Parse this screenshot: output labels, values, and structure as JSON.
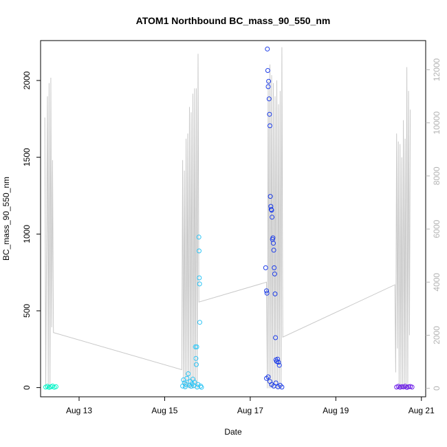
{
  "chart_data": {
    "type": "scatter",
    "title": "ATOM1 Northbound BC_mass_90_550_nm",
    "xlabel": "Date",
    "ylabel": "BC_mass_90_550_nm",
    "x_ticks": [
      {
        "day": 13,
        "label": "Aug 13"
      },
      {
        "day": 15,
        "label": "Aug 15"
      },
      {
        "day": 17,
        "label": "Aug 17"
      },
      {
        "day": 19,
        "label": "Aug 19"
      },
      {
        "day": 21,
        "label": "Aug 21"
      }
    ],
    "x_range": [
      12.1,
      21.1
    ],
    "ylim_left": [
      -60,
      2260
    ],
    "yticks_left": [
      0,
      500,
      1000,
      1500,
      2000
    ],
    "ylim_right": [
      -320,
      13100
    ],
    "yticks_right": [
      0,
      2000,
      4000,
      6000,
      8000,
      10000,
      12000
    ],
    "grid": false,
    "legend": "none",
    "colors": {
      "points_aug12": "#00f5c8",
      "points_aug15": "#2cc4f5",
      "points_aug17": "#1a3ae8",
      "points_aug20": "#6a1ae8",
      "line": "#c8c8c8",
      "right_axis": "#b3b3b3"
    },
    "series": [
      {
        "color_key": "points_aug12",
        "points": [
          [
            12.22,
            3
          ],
          [
            12.26,
            8
          ],
          [
            12.3,
            1
          ],
          [
            12.34,
            5
          ],
          [
            12.38,
            10
          ],
          [
            12.42,
            2
          ],
          [
            12.46,
            6
          ]
        ]
      },
      {
        "color_key": "points_aug15",
        "points": [
          [
            15.42,
            10
          ],
          [
            15.44,
            50
          ],
          [
            15.46,
            30
          ],
          [
            15.48,
            5
          ],
          [
            15.5,
            20
          ],
          [
            15.52,
            60
          ],
          [
            15.55,
            90
          ],
          [
            15.58,
            15
          ],
          [
            15.6,
            40
          ],
          [
            15.62,
            8
          ],
          [
            15.64,
            25
          ],
          [
            15.66,
            55
          ],
          [
            15.68,
            12
          ],
          [
            15.7,
            35
          ],
          [
            15.72,
            265
          ],
          [
            15.73,
            190
          ],
          [
            15.74,
            150
          ],
          [
            15.75,
            265
          ],
          [
            15.76,
            3
          ],
          [
            15.78,
            20
          ],
          [
            15.8,
            980
          ],
          [
            15.805,
            890
          ],
          [
            15.81,
            715
          ],
          [
            15.815,
            675
          ],
          [
            15.82,
            425
          ],
          [
            15.84,
            10
          ],
          [
            15.86,
            2
          ]
        ]
      },
      {
        "color_key": "points_aug17",
        "points": [
          [
            17.36,
            780
          ],
          [
            17.38,
            630
          ],
          [
            17.39,
            615
          ],
          [
            17.4,
            2205
          ],
          [
            17.41,
            2065
          ],
          [
            17.42,
            1960
          ],
          [
            17.43,
            1995
          ],
          [
            17.44,
            1880
          ],
          [
            17.45,
            1780
          ],
          [
            17.46,
            1705
          ],
          [
            17.47,
            1245
          ],
          [
            17.48,
            1180
          ],
          [
            17.49,
            1160
          ],
          [
            17.5,
            1155
          ],
          [
            17.51,
            1110
          ],
          [
            17.52,
            965
          ],
          [
            17.53,
            975
          ],
          [
            17.54,
            940
          ],
          [
            17.55,
            895
          ],
          [
            17.56,
            780
          ],
          [
            17.57,
            740
          ],
          [
            17.58,
            610
          ],
          [
            17.59,
            325
          ],
          [
            17.6,
            180
          ],
          [
            17.62,
            170
          ],
          [
            17.64,
            185
          ],
          [
            17.66,
            165
          ],
          [
            17.68,
            145
          ],
          [
            17.38,
            60
          ],
          [
            17.42,
            70
          ],
          [
            17.46,
            40
          ],
          [
            17.5,
            20
          ],
          [
            17.55,
            10
          ],
          [
            17.6,
            30
          ],
          [
            17.65,
            5
          ],
          [
            17.7,
            15
          ],
          [
            17.74,
            3
          ]
        ]
      },
      {
        "color_key": "points_aug20",
        "points": [
          [
            20.42,
            3
          ],
          [
            20.46,
            8
          ],
          [
            20.5,
            2
          ],
          [
            20.54,
            6
          ],
          [
            20.58,
            4
          ],
          [
            20.62,
            9
          ],
          [
            20.66,
            1
          ],
          [
            20.7,
            5
          ],
          [
            20.74,
            7
          ],
          [
            20.78,
            3
          ]
        ]
      }
    ],
    "line_series": {
      "axis": "right",
      "points": [
        [
          12.2,
          10200
        ],
        [
          12.22,
          0
        ],
        [
          12.26,
          11000
        ],
        [
          12.28,
          0
        ],
        [
          12.3,
          11500
        ],
        [
          12.32,
          0
        ],
        [
          12.34,
          11700
        ],
        [
          12.36,
          2300
        ],
        [
          12.38,
          8600
        ],
        [
          12.4,
          2100
        ],
        [
          15.4,
          700
        ],
        [
          15.42,
          8600
        ],
        [
          15.44,
          0
        ],
        [
          15.46,
          8200
        ],
        [
          15.48,
          0
        ],
        [
          15.5,
          9400
        ],
        [
          15.52,
          0
        ],
        [
          15.54,
          9600
        ],
        [
          15.56,
          0
        ],
        [
          15.58,
          10600
        ],
        [
          15.6,
          0
        ],
        [
          15.62,
          10400
        ],
        [
          15.64,
          0
        ],
        [
          15.66,
          11100
        ],
        [
          15.68,
          0
        ],
        [
          15.7,
          11300
        ],
        [
          15.72,
          0
        ],
        [
          15.74,
          11300
        ],
        [
          15.76,
          0
        ],
        [
          15.78,
          12600
        ],
        [
          15.8,
          3250
        ],
        [
          17.38,
          4000
        ],
        [
          17.4,
          0
        ],
        [
          17.42,
          11600
        ],
        [
          17.44,
          0
        ],
        [
          17.46,
          12200
        ],
        [
          17.48,
          0
        ],
        [
          17.5,
          11800
        ],
        [
          17.52,
          0
        ],
        [
          17.54,
          11500
        ],
        [
          17.56,
          0
        ],
        [
          17.58,
          11000
        ],
        [
          17.6,
          0
        ],
        [
          17.62,
          11600
        ],
        [
          17.64,
          0
        ],
        [
          17.66,
          10700
        ],
        [
          17.68,
          0
        ],
        [
          17.7,
          11200
        ],
        [
          17.72,
          0
        ],
        [
          17.74,
          12850
        ],
        [
          17.76,
          1930
        ],
        [
          20.38,
          3900
        ],
        [
          20.4,
          600
        ],
        [
          20.42,
          9600
        ],
        [
          20.44,
          1500
        ],
        [
          20.46,
          9300
        ],
        [
          20.48,
          0
        ],
        [
          20.5,
          9200
        ],
        [
          20.52,
          0
        ],
        [
          20.54,
          8700
        ],
        [
          20.56,
          0
        ],
        [
          20.58,
          10100
        ],
        [
          20.6,
          0
        ],
        [
          20.62,
          9400
        ],
        [
          20.64,
          0
        ],
        [
          20.66,
          12100
        ],
        [
          20.68,
          0
        ],
        [
          20.7,
          11200
        ],
        [
          20.72,
          2000
        ],
        [
          20.74,
          10500
        ]
      ]
    }
  }
}
